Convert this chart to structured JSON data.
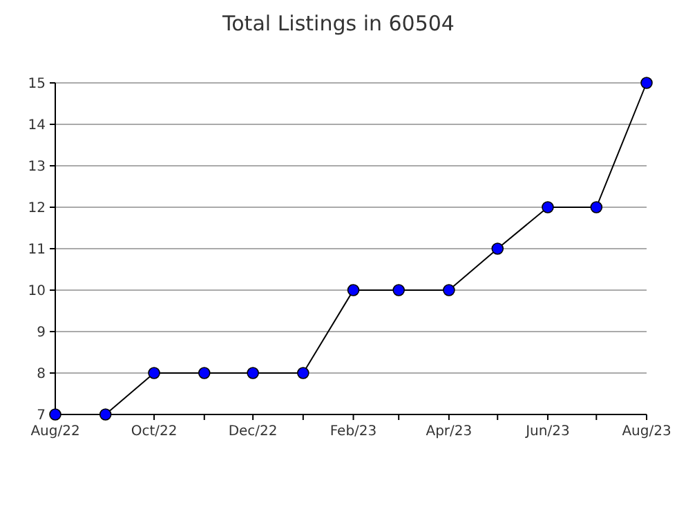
{
  "chart_data": {
    "type": "line",
    "title": "Total Listings in 60504",
    "x": [
      "2022-08",
      "2022-09",
      "2022-10",
      "2022-11",
      "2022-12",
      "2023-01",
      "2023-02",
      "2023-03",
      "2023-04",
      "2023-05",
      "2023-06",
      "2023-07",
      "2023-08"
    ],
    "series": [
      {
        "color": "#0000ff",
        "values": [
          7,
          7,
          8,
          8,
          8,
          8,
          10,
          10,
          10,
          11,
          12,
          12,
          15
        ]
      }
    ],
    "xlim": [
      "2022-08",
      "2023-08"
    ],
    "xticks": [
      {
        "value": "2022-08",
        "label": "Aug/22"
      },
      {
        "value": "2022-09",
        "label": null
      },
      {
        "value": "2022-10",
        "label": "Oct/22"
      },
      {
        "value": "2022-11",
        "label": null
      },
      {
        "value": "2022-12",
        "label": "Dec/22"
      },
      {
        "value": "2023-01",
        "label": null
      },
      {
        "value": "2023-02",
        "label": "Feb/23"
      },
      {
        "value": "2023-03",
        "label": null
      },
      {
        "value": "2023-04",
        "label": "Apr/23"
      },
      {
        "value": "2023-05",
        "label": null
      },
      {
        "value": "2023-06",
        "label": "Jun/23"
      },
      {
        "value": "2023-07",
        "label": null
      },
      {
        "value": "2023-08",
        "label": "Aug/23"
      }
    ],
    "ylim": [
      7,
      15
    ],
    "yticks": [
      7,
      8,
      9,
      10,
      11,
      12,
      13,
      14,
      15
    ],
    "grid": "y",
    "marker": "circle",
    "line_style": "solid"
  }
}
